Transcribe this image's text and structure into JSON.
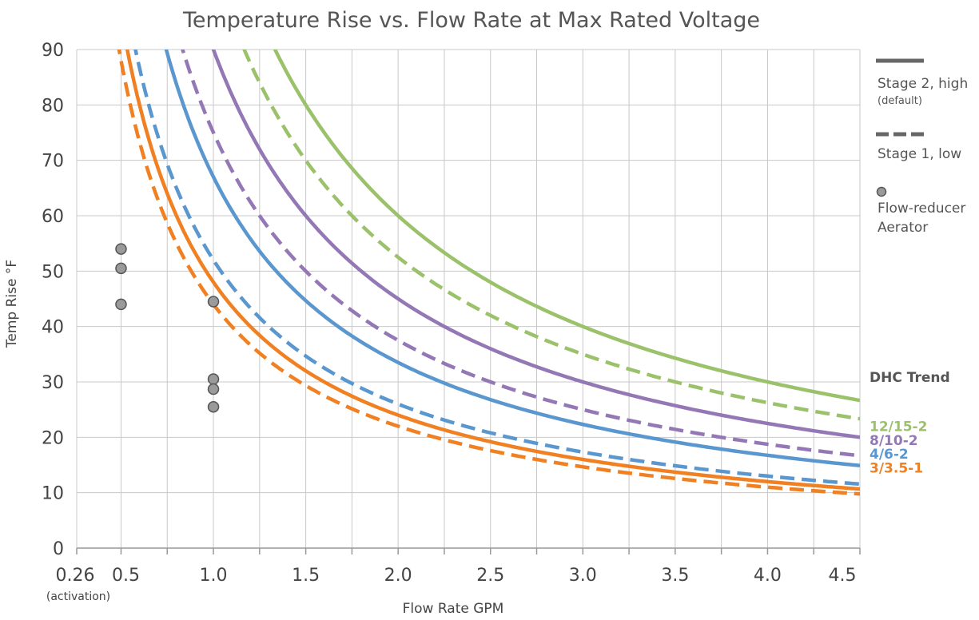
{
  "chart_data": {
    "type": "line",
    "title": "Temperature Rise vs. Flow Rate at Max Rated Voltage",
    "xlabel": "Flow Rate GPM",
    "ylabel": "Temp Rise °F",
    "xlim": [
      0.26,
      4.5
    ],
    "ylim": [
      0,
      90
    ],
    "x_ticks": [
      {
        "value": 0.26,
        "label": "0.26",
        "sublabel": "(activation)"
      },
      {
        "value": 0.5,
        "label": "0.5"
      },
      {
        "value": 1.0,
        "label": "1.0"
      },
      {
        "value": 1.5,
        "label": "1.5"
      },
      {
        "value": 2.0,
        "label": "2.0"
      },
      {
        "value": 2.5,
        "label": "2.5"
      },
      {
        "value": 3.0,
        "label": "3.0"
      },
      {
        "value": 3.5,
        "label": "3.5"
      },
      {
        "value": 4.0,
        "label": "4.0"
      },
      {
        "value": 4.5,
        "label": "4.5"
      }
    ],
    "x_minor_grid": [
      0.75,
      1.25,
      1.75,
      2.25,
      2.75,
      3.25,
      3.75,
      4.25
    ],
    "y_ticks": [
      0,
      10,
      20,
      30,
      40,
      50,
      60,
      70,
      80,
      90
    ],
    "grid": true,
    "legend": {
      "position": "right",
      "items": [
        {
          "style": "solid",
          "label": "Stage 2, high",
          "sublabel": "(default)"
        },
        {
          "style": "dashed",
          "label": "Stage 1, low"
        },
        {
          "style": "marker",
          "label": "Flow-reducer",
          "label2": "Aerator"
        }
      ],
      "trend_heading": "DHC Trend"
    },
    "series": [
      {
        "name": "12/15-2",
        "color": "#9bc26b",
        "stage2_k": 120,
        "stage1_k": 105,
        "label_y": 22
      },
      {
        "name": "8/10-2",
        "color": "#9478b5",
        "stage2_k": 90,
        "stage1_k": 75,
        "label_y": 19.5
      },
      {
        "name": "4/6-2",
        "color": "#5b97cf",
        "stage2_k": 67,
        "stage1_k": 52,
        "label_y": 17
      },
      {
        "name": "3/3.5-1",
        "color": "#f08022",
        "stage2_k": 48,
        "stage1_k": 44,
        "label_y": 14.5
      }
    ],
    "aerator_points": [
      {
        "x": 0.5,
        "y": 54
      },
      {
        "x": 0.5,
        "y": 50.5
      },
      {
        "x": 0.5,
        "y": 44
      },
      {
        "x": 1.0,
        "y": 44.5
      },
      {
        "x": 1.0,
        "y": 30.5
      },
      {
        "x": 1.0,
        "y": 28.7
      },
      {
        "x": 1.0,
        "y": 25.5
      }
    ]
  }
}
